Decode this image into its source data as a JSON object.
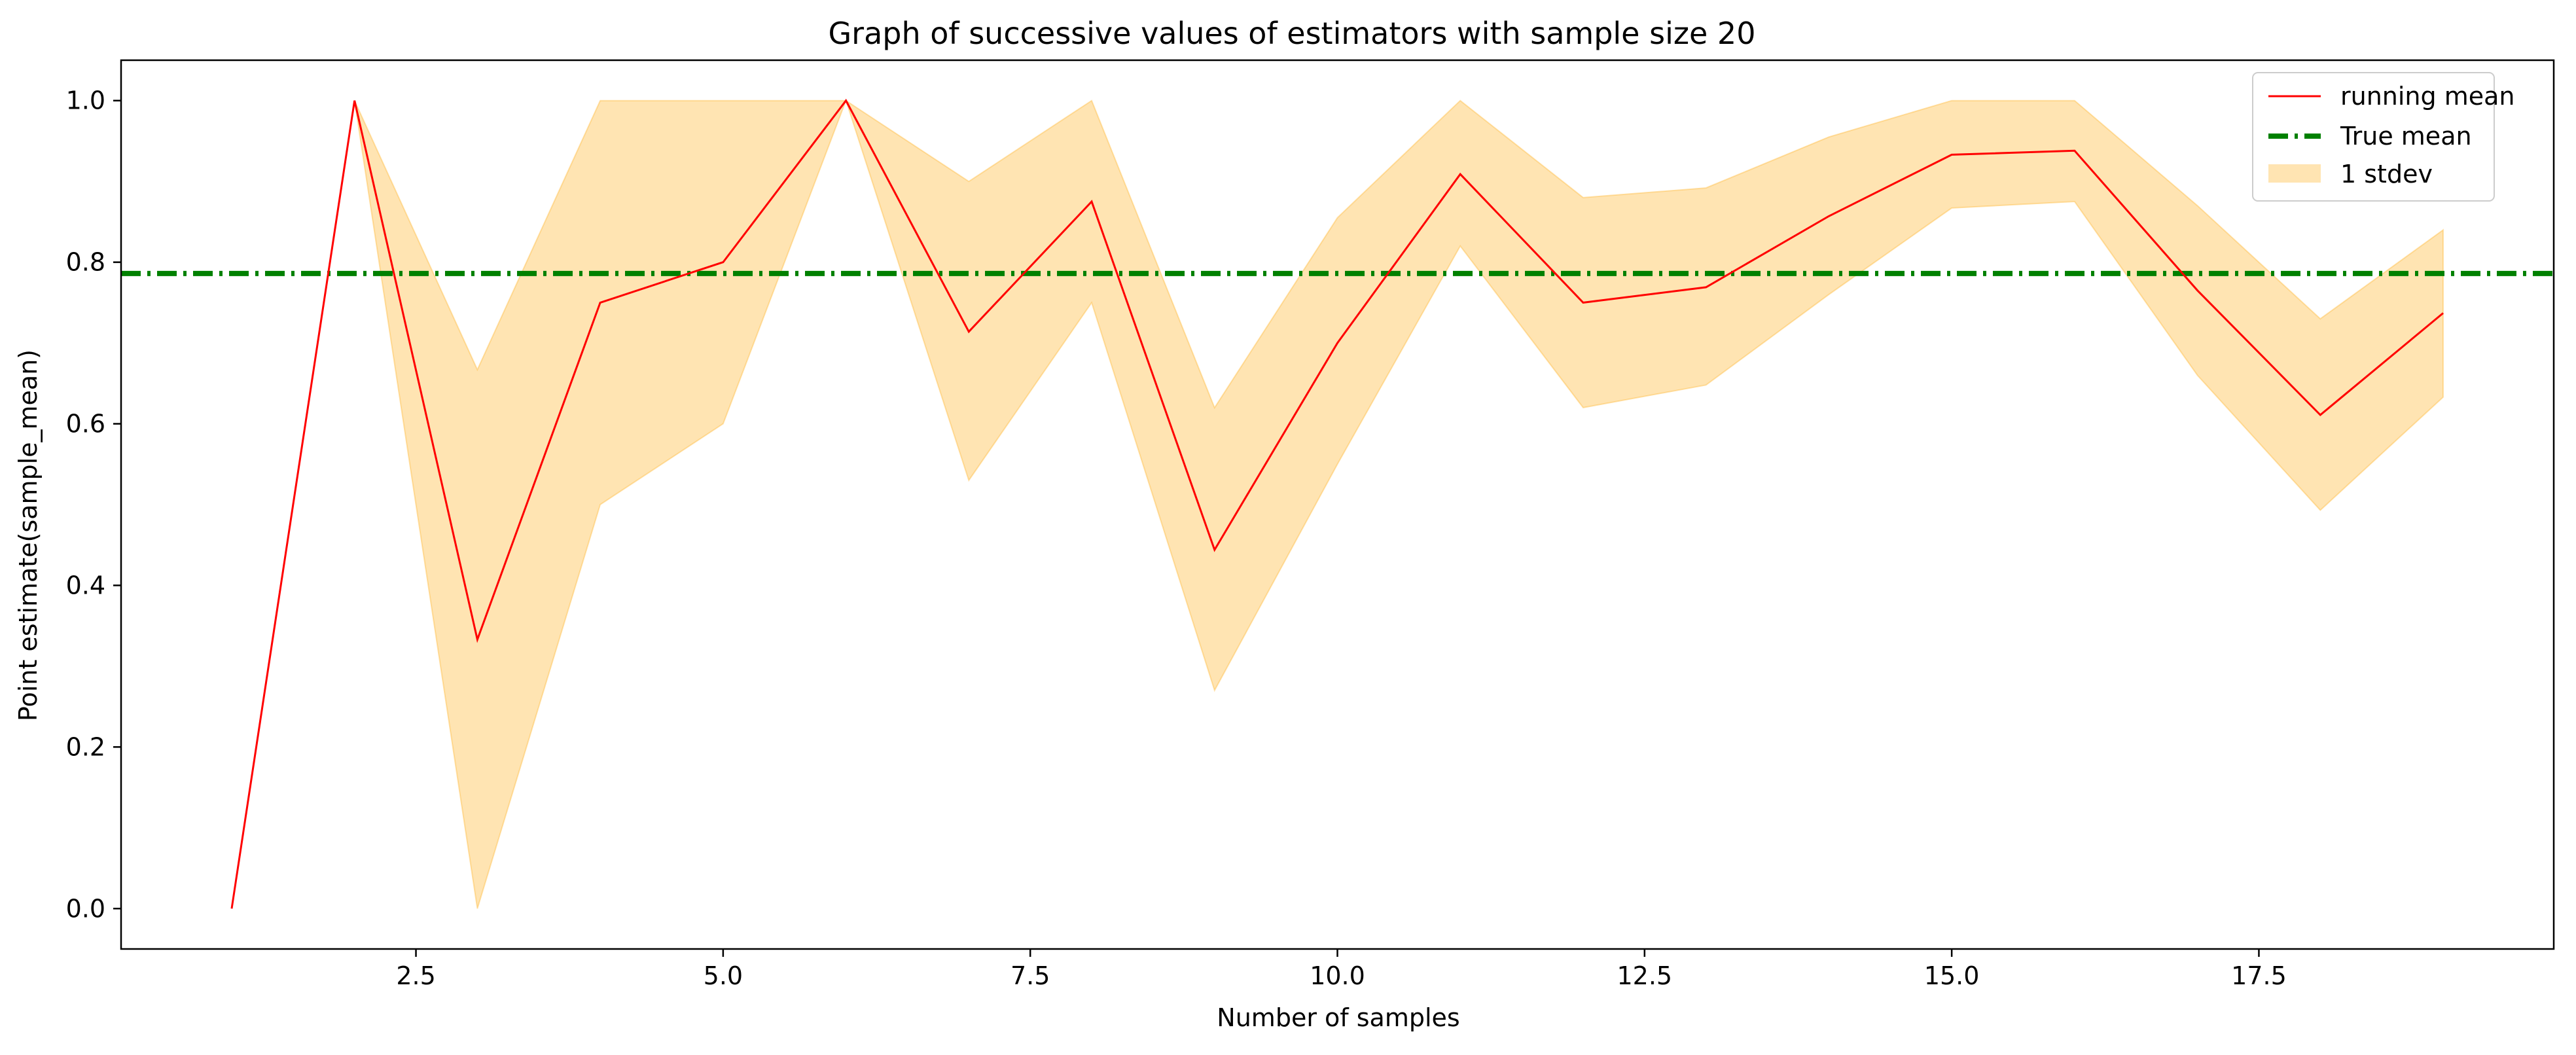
{
  "colors": {
    "running_mean": "#ff0000",
    "true_mean": "#008000",
    "band_fill": "#ffa500",
    "background": "#ffffff",
    "axes": "#000000"
  },
  "chart_data": {
    "type": "line",
    "title": "Graph of successive values of estimators with sample size 20",
    "xlabel": "Number of samples",
    "ylabel": "Point estimate(sample_mean)",
    "xlim": [
      0.1,
      19.9
    ],
    "ylim": [
      -0.05,
      1.05
    ],
    "xticks": [
      2.5,
      5.0,
      7.5,
      10.0,
      12.5,
      15.0,
      17.5
    ],
    "xtick_labels": [
      "2.5",
      "5.0",
      "7.5",
      "10.0",
      "12.5",
      "15.0",
      "17.5"
    ],
    "yticks": [
      0.0,
      0.2,
      0.4,
      0.6,
      0.8,
      1.0
    ],
    "ytick_labels": [
      "0.0",
      "0.2",
      "0.4",
      "0.6",
      "0.8",
      "1.0"
    ],
    "grid": false,
    "legend_position": "top-right",
    "series": [
      {
        "name": "running mean",
        "kind": "line",
        "color": "#ff0000",
        "x": [
          1,
          2,
          3,
          4,
          5,
          6,
          7,
          8,
          9,
          10,
          11,
          12,
          13,
          14,
          15,
          16,
          17,
          18,
          19
        ],
        "y": [
          0.0,
          1.0,
          0.333,
          0.75,
          0.8,
          1.0,
          0.714,
          0.875,
          0.444,
          0.7,
          0.909,
          0.75,
          0.769,
          0.857,
          0.933,
          0.938,
          0.765,
          0.611,
          0.737
        ]
      },
      {
        "name": "True mean",
        "kind": "hline",
        "color": "#008000",
        "y": 0.786
      },
      {
        "name": "1 stdev",
        "kind": "band",
        "color": "#ffa500",
        "x": [
          2,
          3,
          4,
          5,
          6,
          7,
          8,
          9,
          10,
          11,
          12,
          13,
          14,
          15,
          16,
          17,
          18,
          19
        ],
        "lower": [
          1.0,
          0.0,
          0.5,
          0.6,
          1.0,
          0.53,
          0.75,
          0.27,
          0.55,
          0.82,
          0.62,
          0.648,
          0.76,
          0.867,
          0.875,
          0.66,
          0.493,
          0.633
        ],
        "upper": [
          1.0,
          0.667,
          1.0,
          1.0,
          1.0,
          0.9,
          1.0,
          0.62,
          0.855,
          1.0,
          0.88,
          0.892,
          0.955,
          1.0,
          1.0,
          0.87,
          0.73,
          0.84
        ]
      }
    ],
    "legend": [
      "running mean",
      "True mean",
      "1 stdev"
    ]
  }
}
